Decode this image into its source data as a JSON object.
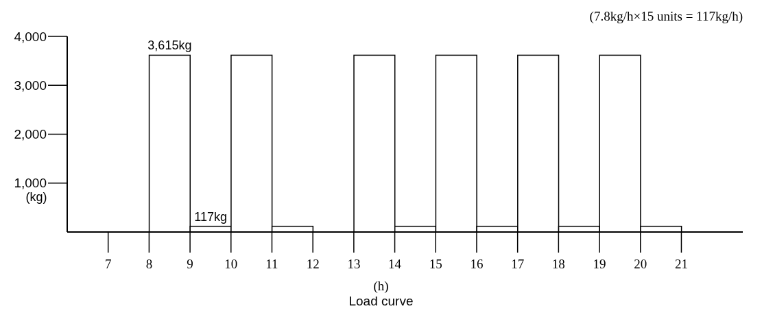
{
  "chart_data": {
    "type": "histogram",
    "title": "Load curve",
    "xlabel": "(h)",
    "ylabel": "(kg)",
    "annotations": [
      "(7.8kg/h×15 units = 117kg/h)"
    ],
    "bins": [
      8,
      9,
      10,
      11,
      12,
      13,
      14,
      15,
      16,
      17,
      18,
      19,
      20,
      21
    ],
    "values": [
      3615,
      117,
      3615,
      117,
      0,
      3615,
      117,
      3615,
      117,
      3615,
      117,
      3615,
      117
    ],
    "value_labels": [
      "3,615kg",
      "117kg",
      null,
      null,
      null,
      null,
      null,
      null,
      null,
      null,
      null,
      null,
      null
    ],
    "color": "#ffffff",
    "xlim": [
      6,
      22.5
    ],
    "xticks": [
      7,
      8,
      9,
      10,
      11,
      12,
      13,
      14,
      15,
      16,
      17,
      18,
      19,
      20,
      21
    ],
    "ylim": [
      0,
      4000
    ],
    "yticks": [
      {
        "value": 1000,
        "label": "1,000"
      },
      {
        "value": 2000,
        "label": "2,000"
      },
      {
        "value": 3000,
        "label": "3,000"
      },
      {
        "value": 4000,
        "label": "4,000"
      }
    ],
    "grid": false,
    "legend": false
  }
}
